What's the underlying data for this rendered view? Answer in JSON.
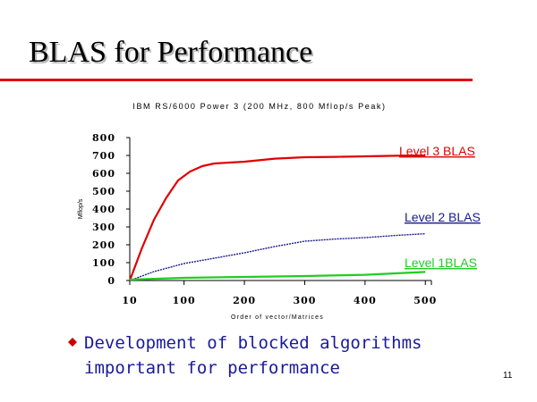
{
  "slide": {
    "title": "BLAS for Performance",
    "bullet_lines": [
      "Development of blocked algorithms",
      "important for performance"
    ],
    "page_number": "11",
    "colors": {
      "title_rule": "#e00000",
      "bullet_text": "#1a1a99",
      "bullet_icon": "#cc0000"
    },
    "bullet_icon": "diamond-bullet-icon"
  },
  "chart_data": {
    "type": "line",
    "title": "IBM RS/6000 Power 3 (200 MHz, 800 Mflop/s Peak)",
    "xlabel": "Order of vector/Matrices",
    "ylabel": "Mflop/s",
    "xlim": [
      10,
      510
    ],
    "ylim": [
      0,
      800
    ],
    "x_ticks": [
      10,
      100,
      200,
      300,
      400,
      500
    ],
    "y_ticks": [
      0,
      100,
      200,
      300,
      400,
      500,
      600,
      700,
      800
    ],
    "grid": false,
    "legend": "right",
    "series": [
      {
        "name": "Level 3 BLAS",
        "color": "#e00000",
        "x": [
          10,
          30,
          50,
          70,
          90,
          110,
          130,
          150,
          200,
          250,
          300,
          350,
          400,
          450,
          500
        ],
        "y": [
          0,
          180,
          340,
          460,
          560,
          610,
          640,
          655,
          665,
          682,
          690,
          692,
          695,
          698,
          700
        ]
      },
      {
        "name": "Level 2 BLAS",
        "color": "#1a1a88",
        "x": [
          10,
          50,
          100,
          150,
          200,
          250,
          300,
          350,
          400,
          450,
          500
        ],
        "y": [
          0,
          50,
          95,
          125,
          155,
          190,
          220,
          232,
          240,
          252,
          262
        ]
      },
      {
        "name": "Level 1BLAS",
        "color": "#22cc22",
        "x": [
          10,
          100,
          200,
          300,
          400,
          450,
          500
        ],
        "y": [
          5,
          15,
          20,
          25,
          32,
          40,
          48
        ]
      }
    ]
  }
}
